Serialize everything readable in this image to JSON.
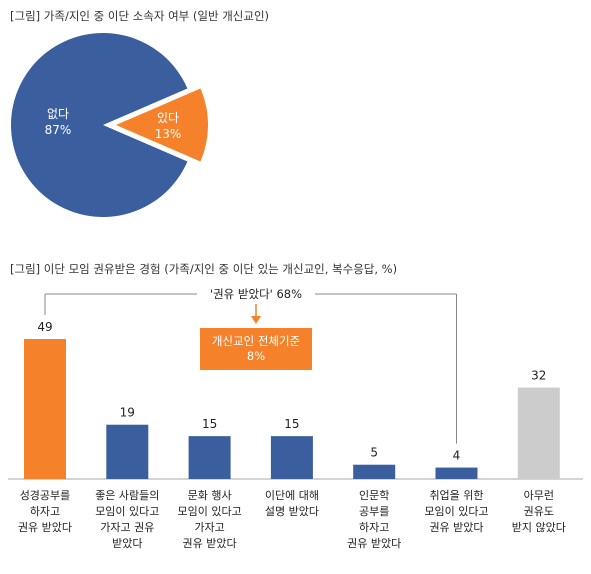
{
  "chart_data": [
    {
      "type": "pie",
      "title": "[그림] 가족/지인 중 이단 소속자 여부 (일반 개신교인)",
      "slices": [
        {
          "label": "없다",
          "value": 87,
          "value_label": "87%",
          "color": "#3B5F9E"
        },
        {
          "label": "있다",
          "value": 13,
          "value_label": "13%",
          "color": "#F5822A"
        }
      ],
      "exploded": "있다"
    },
    {
      "type": "bar",
      "title": "[그림] 이단 모임 권유받은 경험 (가족/지인 중 이단 있는 개신교인, 복수응답, %)",
      "categories": [
        [
          "성경공부를",
          "하자고",
          "권유 받았다"
        ],
        [
          "좋은 사람들의",
          "모임이 있다고",
          "가자고 권유",
          "받았다"
        ],
        [
          "문화 행사",
          "모임이 있다고",
          "가자고",
          "권유 받았다"
        ],
        [
          "이단에 대해",
          "설명 받았다"
        ],
        [
          "인문학",
          "공부를",
          "하자고",
          "권유 받았다"
        ],
        [
          "취업을 위한",
          "모임이 있다고",
          "권유 받았다"
        ],
        [
          "아무런",
          "권유도",
          "받지 않았다"
        ]
      ],
      "values": [
        49,
        19,
        15,
        15,
        5,
        4,
        32
      ],
      "colors": [
        "#F5822A",
        "#3B5F9E",
        "#3B5F9E",
        "#3B5F9E",
        "#3B5F9E",
        "#3B5F9E",
        "#CCCCCC"
      ],
      "ylim": [
        0,
        60
      ],
      "grid": false,
      "bracket_label": "'권유 받았다' 68%",
      "callout_lines": [
        "개신교인 전체기준",
        "8%"
      ],
      "callout_color": "#F5822A"
    }
  ]
}
